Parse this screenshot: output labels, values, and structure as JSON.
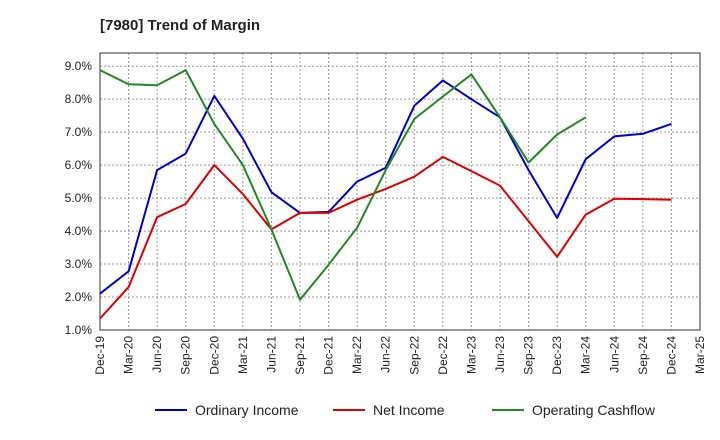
{
  "chart_data": {
    "type": "line",
    "title": "[7980]  Trend of Margin",
    "xlabel": "",
    "ylabel": "",
    "categories": [
      "Dec-19",
      "Mar-20",
      "Jun-20",
      "Sep-20",
      "Dec-20",
      "Mar-21",
      "Jun-21",
      "Sep-21",
      "Dec-21",
      "Mar-22",
      "Jun-22",
      "Sep-22",
      "Dec-22",
      "Mar-23",
      "Jun-23",
      "Sep-23",
      "Dec-23",
      "Mar-24",
      "Jun-24",
      "Sep-24",
      "Dec-24",
      "Mar-25"
    ],
    "y_ticks": [
      "1.0%",
      "2.0%",
      "3.0%",
      "4.0%",
      "5.0%",
      "6.0%",
      "7.0%",
      "8.0%",
      "9.0%"
    ],
    "ylim": [
      1.0,
      9.4
    ],
    "grid": true,
    "legend_position": "bottom",
    "series": [
      {
        "name": "Ordinary Income",
        "color": "#0000cc",
        "values": [
          2.1,
          2.78,
          5.85,
          6.35,
          8.1,
          6.8,
          5.18,
          4.55,
          4.58,
          5.5,
          5.92,
          7.8,
          8.57,
          8.0,
          7.45,
          5.85,
          4.4,
          6.18,
          6.87,
          6.95,
          7.25,
          null
        ]
      },
      {
        "name": "Net Income",
        "color": "#dd0000",
        "values": [
          1.35,
          2.3,
          4.42,
          4.82,
          6.0,
          5.12,
          4.05,
          4.55,
          4.55,
          4.95,
          5.28,
          5.65,
          6.25,
          5.82,
          5.38,
          4.3,
          3.22,
          4.5,
          4.98,
          4.97,
          4.95,
          null
        ]
      },
      {
        "name": "Operating Cashflow",
        "color": "#228822",
        "values": [
          8.88,
          8.45,
          8.42,
          8.88,
          7.25,
          6.0,
          4.05,
          1.92,
          2.98,
          4.1,
          5.85,
          7.4,
          8.08,
          8.75,
          7.45,
          6.08,
          6.93,
          7.45,
          null,
          null,
          null,
          null
        ]
      }
    ]
  }
}
